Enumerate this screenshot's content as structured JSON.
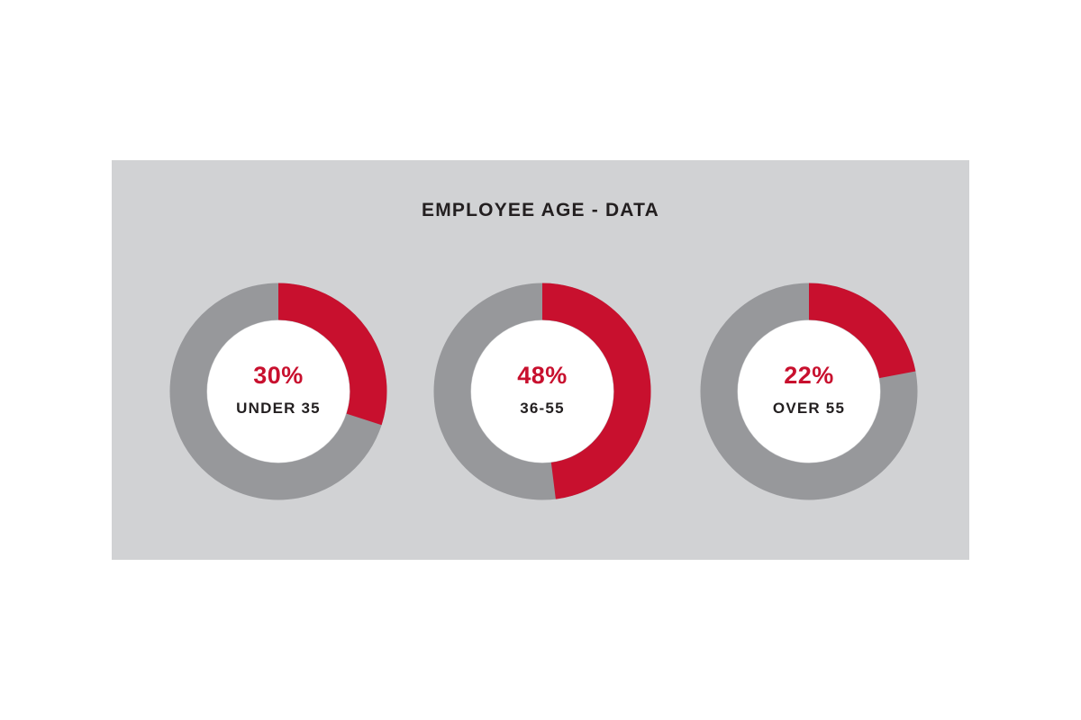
{
  "colors": {
    "panel_bg": "#d1d2d4",
    "accent": "#c8102e",
    "remainder": "#97989b",
    "center": "#ffffff",
    "text": "#231f20"
  },
  "chart_data": {
    "type": "pie",
    "title": "EMPLOYEE AGE - DATA",
    "charts": [
      {
        "label": "UNDER 35",
        "value": 30,
        "display": "30%"
      },
      {
        "label": "36-55",
        "value": 48,
        "display": "48%"
      },
      {
        "label": "OVER 55",
        "value": 22,
        "display": "22%"
      }
    ]
  }
}
